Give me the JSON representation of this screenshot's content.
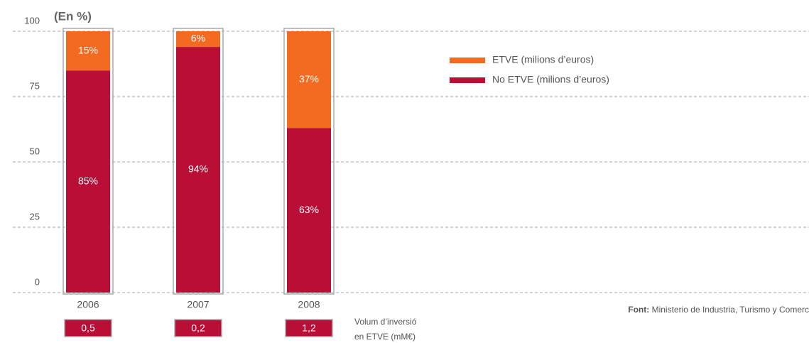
{
  "chart_data": {
    "type": "stacked_bar",
    "subtitle": "(En %)",
    "categories": [
      "2006",
      "2007",
      "2008"
    ],
    "series": [
      {
        "name": "No ETVE (milions d’euros)",
        "color": "#b90e36",
        "values": [
          85,
          94,
          63
        ],
        "value_labels": [
          "85%",
          "94%",
          "63%"
        ]
      },
      {
        "name": "ETVE (milions d’euros)",
        "color": "#f26b21",
        "values": [
          15,
          6,
          37
        ],
        "value_labels": [
          "15%",
          "6%",
          "37%"
        ]
      }
    ],
    "ylim": [
      0,
      100
    ],
    "yticks": [
      0,
      25,
      50,
      75,
      100
    ],
    "grid": true,
    "volume": {
      "label": [
        "Volum d’inversió",
        "en ETVE (mM€)"
      ],
      "values": [
        0.5,
        0.2,
        1.2
      ],
      "value_labels": [
        "0,5",
        "0,2",
        "1,2"
      ],
      "color": "#b90e36"
    },
    "source_label": "Font:",
    "source": "Ministerio de Industria, Turismo y Comerc"
  }
}
